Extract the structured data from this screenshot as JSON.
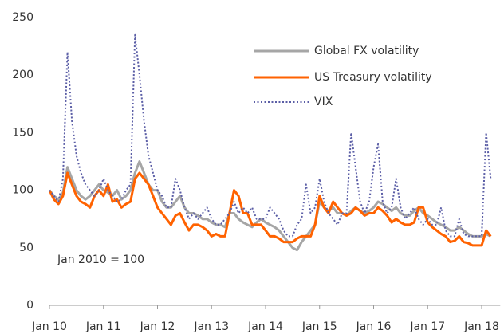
{
  "chart_data": {
    "type": "line",
    "annotation": "Jan 2010 = 100",
    "categories": [
      "Jan 10",
      null,
      null,
      null,
      null,
      null,
      null,
      null,
      null,
      null,
      null,
      null,
      "Jan 11",
      null,
      null,
      null,
      null,
      null,
      null,
      null,
      null,
      null,
      null,
      null,
      "Jan 12",
      null,
      null,
      null,
      null,
      null,
      null,
      null,
      null,
      null,
      null,
      null,
      "Jan 13",
      null,
      null,
      null,
      null,
      null,
      null,
      null,
      null,
      null,
      null,
      null,
      "Jan 14",
      null,
      null,
      null,
      null,
      null,
      null,
      null,
      null,
      null,
      null,
      null,
      "Jan 15",
      null,
      null,
      null,
      null,
      null,
      null,
      null,
      null,
      null,
      null,
      null,
      "Jan 16",
      null,
      null,
      null,
      null,
      null,
      null,
      null,
      null,
      null,
      null,
      null,
      "Jan 17",
      null,
      null,
      null,
      null,
      null,
      null,
      null,
      null,
      null,
      null,
      null,
      "Jan 18",
      null,
      null
    ],
    "series": [
      {
        "name": "Global FX volatility",
        "color": "#a6a6a6",
        "line_style": "solid",
        "values": [
          100,
          95,
          92,
          98,
          120,
          110,
          100,
          95,
          92,
          95,
          100,
          105,
          100,
          98,
          95,
          100,
          92,
          95,
          100,
          115,
          125,
          115,
          105,
          100,
          100,
          90,
          85,
          85,
          90,
          95,
          85,
          80,
          80,
          78,
          75,
          75,
          72,
          70,
          70,
          68,
          80,
          80,
          75,
          72,
          70,
          68,
          72,
          75,
          72,
          70,
          68,
          65,
          60,
          55,
          50,
          48,
          55,
          60,
          65,
          70,
          90,
          85,
          82,
          85,
          80,
          80,
          78,
          82,
          85,
          82,
          80,
          82,
          85,
          90,
          88,
          85,
          82,
          85,
          80,
          78,
          78,
          82,
          85,
          80,
          78,
          75,
          72,
          70,
          68,
          65,
          65,
          68,
          65,
          62,
          60,
          60,
          60,
          62,
          60
        ]
      },
      {
        "name": "US Treasury volatility",
        "color": "#ff6200",
        "line_style": "solid",
        "values": [
          100,
          92,
          88,
          95,
          115,
          105,
          95,
          90,
          88,
          85,
          95,
          100,
          95,
          105,
          90,
          92,
          85,
          88,
          90,
          110,
          115,
          110,
          105,
          95,
          85,
          80,
          75,
          70,
          78,
          80,
          72,
          65,
          70,
          70,
          68,
          65,
          60,
          62,
          60,
          60,
          80,
          100,
          95,
          80,
          80,
          70,
          70,
          70,
          65,
          60,
          60,
          58,
          55,
          55,
          55,
          58,
          60,
          60,
          60,
          70,
          95,
          85,
          80,
          90,
          85,
          80,
          78,
          80,
          85,
          82,
          78,
          80,
          80,
          85,
          82,
          78,
          72,
          75,
          72,
          70,
          70,
          72,
          85,
          85,
          72,
          68,
          65,
          62,
          60,
          55,
          56,
          60,
          55,
          54,
          52,
          52,
          52,
          65,
          60
        ]
      },
      {
        "name": "VIX",
        "color": "#5b5ea6",
        "line_style": "dotted",
        "values": [
          100,
          95,
          90,
          110,
          220,
          160,
          130,
          115,
          105,
          100,
          95,
          100,
          110,
          100,
          95,
          90,
          92,
          100,
          105,
          235,
          200,
          160,
          130,
          115,
          100,
          95,
          85,
          85,
          110,
          100,
          85,
          75,
          80,
          75,
          80,
          85,
          75,
          70,
          70,
          75,
          80,
          90,
          80,
          85,
          80,
          85,
          75,
          75,
          75,
          85,
          80,
          75,
          65,
          60,
          60,
          70,
          75,
          105,
          80,
          85,
          110,
          90,
          80,
          75,
          70,
          80,
          80,
          150,
          120,
          90,
          80,
          90,
          120,
          140,
          90,
          80,
          85,
          110,
          85,
          75,
          80,
          85,
          75,
          70,
          75,
          70,
          70,
          85,
          65,
          60,
          60,
          75,
          62,
          60,
          60,
          60,
          60,
          150,
          110
        ]
      }
    ],
    "ylim": [
      0,
      250
    ],
    "yticks": [
      0,
      50,
      100,
      150,
      200,
      250
    ],
    "grid": false,
    "legend": "top-right"
  }
}
